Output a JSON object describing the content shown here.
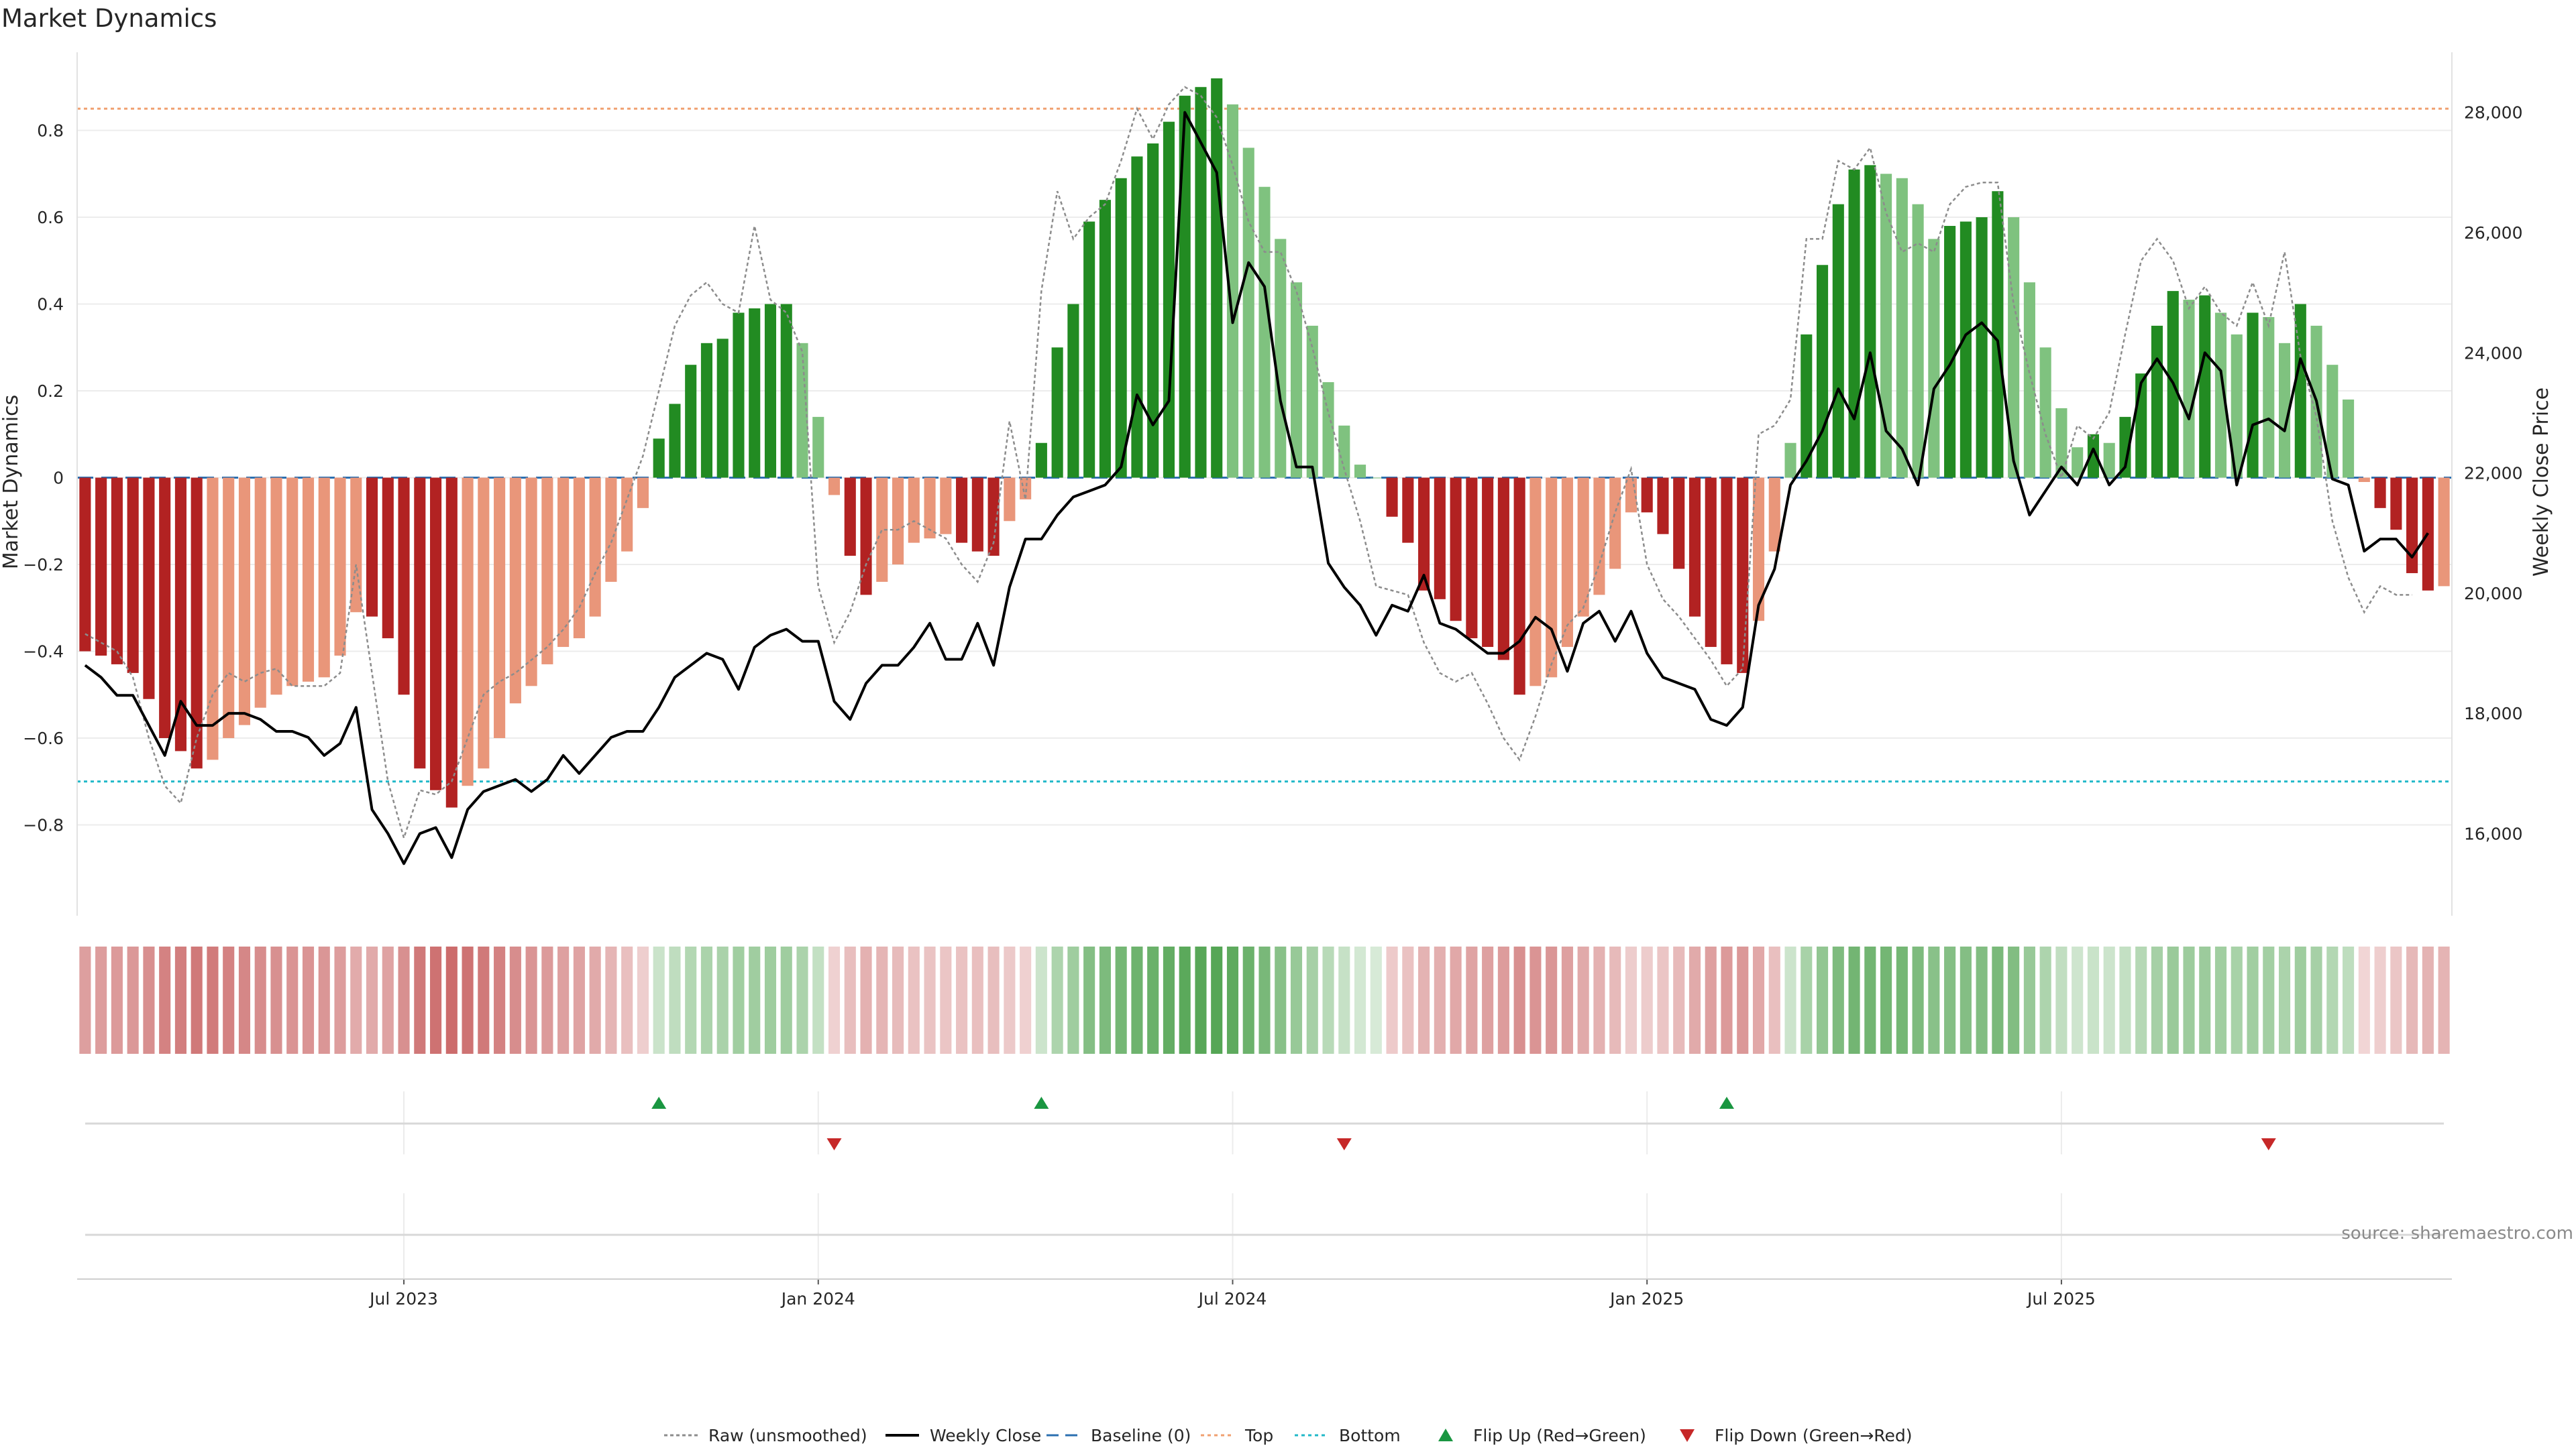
{
  "chart_data": {
    "type": "bar",
    "title": "Market Dynamics",
    "ylabel_left": "Market Dynamics",
    "ylabel_right": "Weekly Close Price",
    "ylim_left": [
      -1.0,
      0.98
    ],
    "ylim_right": [
      14700,
      29000
    ],
    "y_ticks_left": [
      -0.8,
      -0.6,
      -0.4,
      -0.2,
      0,
      0.2,
      0.4,
      0.6,
      0.8
    ],
    "y_tick_labels_left": [
      "−0.8",
      "−0.6",
      "−0.4",
      "−0.2",
      "0",
      "0.2",
      "0.4",
      "0.6",
      "0.8"
    ],
    "y_ticks_right": [
      16000,
      18000,
      20000,
      22000,
      24000,
      26000,
      28000
    ],
    "y_tick_labels_right": [
      "16,000",
      "18,000",
      "20,000",
      "22,000",
      "24,000",
      "26,000",
      "28,000"
    ],
    "x_ticks": [
      {
        "index": 20,
        "label": "Jul 2023"
      },
      {
        "index": 46,
        "label": "Jan 2024"
      },
      {
        "index": 72,
        "label": "Jul 2024"
      },
      {
        "index": 98,
        "label": "Jan 2025"
      },
      {
        "index": 124,
        "label": "Jul 2025"
      }
    ],
    "top_level": 0.85,
    "bottom_level": -0.7,
    "baseline": 0,
    "colors": {
      "neg_strong": "#b22222",
      "neg_weak": "#e9967a",
      "pos_strong": "#228b22",
      "pos_weak": "#7fc27f",
      "close": "#000000",
      "raw": "#8c8c8c",
      "baseline": "#2b6fb0",
      "top": "#f0a070",
      "bottom": "#20b8c8",
      "flip_up": "#1a9641",
      "flip_down": "#c62828"
    },
    "series": [
      {
        "name": "Market Dynamics",
        "values": [
          -0.4,
          -0.41,
          -0.43,
          -0.45,
          -0.51,
          -0.6,
          -0.63,
          -0.67,
          -0.65,
          -0.6,
          -0.57,
          -0.53,
          -0.5,
          -0.48,
          -0.47,
          -0.46,
          -0.41,
          -0.31,
          -0.32,
          -0.37,
          -0.5,
          -0.67,
          -0.72,
          -0.76,
          -0.71,
          -0.67,
          -0.6,
          -0.52,
          -0.48,
          -0.43,
          -0.39,
          -0.37,
          -0.32,
          -0.24,
          -0.17,
          -0.07,
          0.09,
          0.17,
          0.26,
          0.31,
          0.32,
          0.38,
          0.39,
          0.4,
          0.4,
          0.31,
          0.14,
          -0.04,
          -0.18,
          -0.27,
          -0.24,
          -0.2,
          -0.15,
          -0.14,
          -0.13,
          -0.15,
          -0.17,
          -0.18,
          -0.1,
          -0.05,
          0.08,
          0.3,
          0.4,
          0.59,
          0.64,
          0.69,
          0.74,
          0.77,
          0.82,
          0.88,
          0.9,
          0.92,
          0.86,
          0.76,
          0.67,
          0.55,
          0.45,
          0.35,
          0.22,
          0.12,
          0.03,
          0.0,
          -0.09,
          -0.15,
          -0.26,
          -0.28,
          -0.33,
          -0.37,
          -0.39,
          -0.42,
          -0.5,
          -0.48,
          -0.46,
          -0.39,
          -0.32,
          -0.27,
          -0.21,
          -0.08,
          -0.08,
          -0.13,
          -0.21,
          -0.32,
          -0.39,
          -0.43,
          -0.45,
          -0.33,
          -0.17,
          0.08,
          0.33,
          0.49,
          0.63,
          0.71,
          0.72,
          0.7,
          0.69,
          0.63,
          0.55,
          0.58,
          0.59,
          0.6,
          0.66,
          0.6,
          0.45,
          0.3,
          0.16,
          0.07,
          0.1,
          0.08,
          0.14,
          0.24,
          0.35,
          0.43,
          0.41,
          0.42,
          0.38,
          0.33,
          0.38,
          0.37,
          0.31,
          0.4,
          0.35,
          0.26,
          0.18,
          -0.01,
          -0.07,
          -0.12,
          -0.22,
          -0.26,
          -0.25
        ]
      },
      {
        "name": "Weekly Close",
        "values": [
          18800,
          18600,
          18300,
          18300,
          17800,
          17300,
          18200,
          17800,
          17800,
          18000,
          18000,
          17900,
          17700,
          17700,
          17600,
          17300,
          17500,
          18100,
          16400,
          16000,
          15500,
          16000,
          16100,
          15600,
          16400,
          16700,
          16800,
          16900,
          16700,
          16900,
          17300,
          17000,
          17300,
          17600,
          17700,
          17700,
          18100,
          18600,
          18800,
          19000,
          18900,
          18400,
          19100,
          19300,
          19400,
          19200,
          19200,
          18200,
          17900,
          18500,
          18800,
          18800,
          19100,
          19500,
          18900,
          18900,
          19500,
          18800,
          20100,
          20900,
          20900,
          21300,
          21600,
          21700,
          21800,
          22100,
          23300,
          22800,
          23200,
          28000,
          27500,
          27000,
          24500,
          25500,
          25100,
          23200,
          22100,
          22100,
          20500,
          20100,
          19800,
          19300,
          19800,
          19700,
          20300,
          19500,
          19400,
          19200,
          19000,
          19000,
          19200,
          19600,
          19400,
          18700,
          19500,
          19700,
          19200,
          19700,
          19000,
          18600,
          18500,
          18400,
          17900,
          17800,
          18100,
          19800,
          20400,
          21800,
          22200,
          22700,
          23400,
          22900,
          24000,
          22700,
          22400,
          21800,
          23400,
          23800,
          24300,
          24500,
          24200,
          22200,
          21300,
          21700,
          22100,
          21800,
          22400,
          21800,
          22100,
          23500,
          23900,
          23500,
          22900,
          24000,
          23700,
          21800,
          22800,
          22900,
          22700,
          23900,
          23200,
          21900,
          21800,
          20700,
          20900,
          20900,
          20600,
          21000
        ]
      },
      {
        "name": "Raw (unsmoothed)",
        "values": [
          -0.36,
          -0.38,
          -0.4,
          -0.46,
          -0.6,
          -0.71,
          -0.75,
          -0.6,
          -0.5,
          -0.45,
          -0.47,
          -0.45,
          -0.44,
          -0.48,
          -0.48,
          -0.48,
          -0.45,
          -0.2,
          -0.45,
          -0.7,
          -0.83,
          -0.72,
          -0.73,
          -0.7,
          -0.6,
          -0.5,
          -0.47,
          -0.45,
          -0.42,
          -0.39,
          -0.35,
          -0.3,
          -0.22,
          -0.15,
          -0.05,
          0.05,
          0.2,
          0.35,
          0.42,
          0.45,
          0.4,
          0.38,
          0.58,
          0.41,
          0.38,
          0.29,
          -0.25,
          -0.38,
          -0.31,
          -0.2,
          -0.12,
          -0.12,
          -0.1,
          -0.12,
          -0.14,
          -0.2,
          -0.24,
          -0.15,
          0.13,
          -0.05,
          0.43,
          0.66,
          0.55,
          0.6,
          0.63,
          0.73,
          0.85,
          0.78,
          0.86,
          0.9,
          0.88,
          0.83,
          0.72,
          0.59,
          0.52,
          0.52,
          0.43,
          0.3,
          0.15,
          0.02,
          -0.1,
          -0.25,
          -0.26,
          -0.27,
          -0.38,
          -0.45,
          -0.47,
          -0.45,
          -0.52,
          -0.6,
          -0.65,
          -0.55,
          -0.43,
          -0.34,
          -0.3,
          -0.2,
          -0.08,
          0.02,
          -0.2,
          -0.28,
          -0.32,
          -0.37,
          -0.42,
          -0.48,
          -0.44,
          0.1,
          0.12,
          0.18,
          0.55,
          0.55,
          0.73,
          0.71,
          0.76,
          0.61,
          0.52,
          0.54,
          0.52,
          0.63,
          0.67,
          0.68,
          0.68,
          0.4,
          0.24,
          0.1,
          0.0,
          0.12,
          0.09,
          0.15,
          0.33,
          0.5,
          0.55,
          0.5,
          0.39,
          0.44,
          0.38,
          0.35,
          0.45,
          0.35,
          0.52,
          0.28,
          0.14,
          -0.1,
          -0.23,
          -0.31,
          -0.25,
          -0.27,
          -0.27
        ]
      }
    ],
    "flip_up_indices": [
      36,
      60,
      103
    ],
    "flip_down_indices": [
      47,
      79,
      137
    ],
    "legend": [
      {
        "label": "Raw (unsmoothed)",
        "style": "raw"
      },
      {
        "label": "Weekly Close",
        "style": "close"
      },
      {
        "label": "Baseline (0)",
        "style": "baseline"
      },
      {
        "label": "Top",
        "style": "top"
      },
      {
        "label": "Bottom",
        "style": "bottom"
      },
      {
        "label": "Flip Up (Red→Green)",
        "style": "flip_up"
      },
      {
        "label": "Flip Down (Green→Red)",
        "style": "flip_down"
      }
    ],
    "source": "source: sharemaestro.com"
  }
}
